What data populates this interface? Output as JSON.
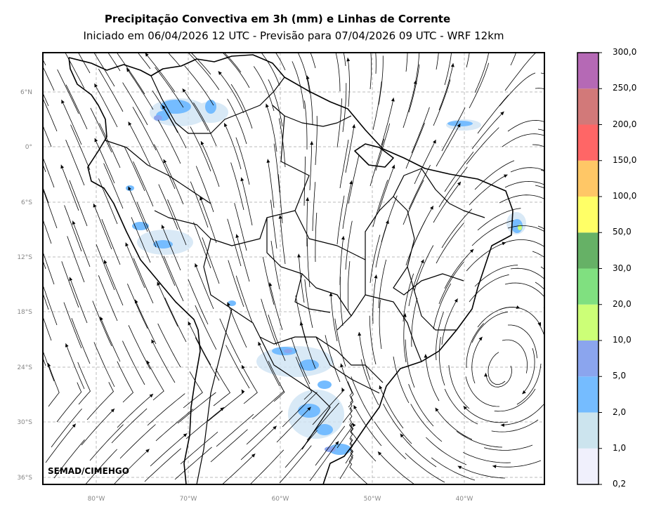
{
  "header": {
    "title": "Precipitação Convectiva em 3h (mm) e Linhas de Corrente",
    "subtitle": "Iniciado em 06/04/2026 12 UTC - Previsão para 07/04/2026 09 UTC - WRF 12km"
  },
  "map": {
    "lat_ticks": [
      "6°N",
      "0°",
      "6°S",
      "12°S",
      "18°S",
      "24°S",
      "30°S",
      "36°S"
    ],
    "lon_ticks": [
      "80°W",
      "70°W",
      "60°W",
      "50°W",
      "40°W"
    ],
    "credit": "SEMAD/CIMEHGO"
  },
  "colorbar": {
    "colors": [
      "#f0f0fc",
      "#cce4ee",
      "#75bcff",
      "#8ba5ee",
      "#ccff77",
      "#80e080",
      "#66b166",
      "#ffff66",
      "#ffc766",
      "#ff6666",
      "#d27979",
      "#b569b5"
    ],
    "labels": [
      "0,2",
      "1,0",
      "2,0",
      "5,0",
      "10,0",
      "20,0",
      "30,0",
      "50,0",
      "100,0",
      "150,0",
      "200,0",
      "250,0",
      "300,0"
    ]
  }
}
